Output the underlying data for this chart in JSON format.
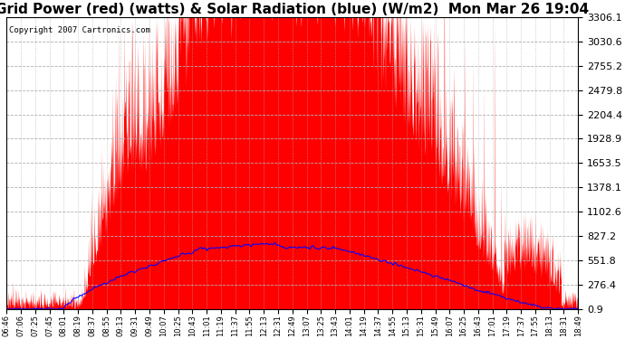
{
  "title": "Grid Power (red) (watts) & Solar Radiation (blue) (W/m2)  Mon Mar 26 19:04",
  "copyright": "Copyright 2007 Cartronics.com",
  "yticks": [
    0.9,
    276.4,
    551.8,
    827.2,
    1102.6,
    1378.1,
    1653.5,
    1928.9,
    2204.4,
    2479.8,
    2755.2,
    3030.6,
    3306.1
  ],
  "ymin": 0.9,
  "ymax": 3306.1,
  "background_color": "#ffffff",
  "grid_color": "#b0b0b0",
  "red_color": "#ff0000",
  "blue_color": "#0000ff",
  "title_fontsize": 11,
  "xtick_labels": [
    "06:46",
    "07:06",
    "07:25",
    "07:45",
    "08:01",
    "08:19",
    "08:37",
    "08:55",
    "09:13",
    "09:31",
    "09:49",
    "10:07",
    "10:25",
    "10:43",
    "11:01",
    "11:19",
    "11:37",
    "11:55",
    "12:13",
    "12:31",
    "12:49",
    "13:07",
    "13:25",
    "13:43",
    "14:01",
    "14:19",
    "14:37",
    "14:55",
    "15:13",
    "15:31",
    "15:49",
    "16:07",
    "16:25",
    "16:43",
    "17:01",
    "17:19",
    "17:37",
    "17:55",
    "18:13",
    "18:31",
    "18:49"
  ],
  "n_points": 2000
}
